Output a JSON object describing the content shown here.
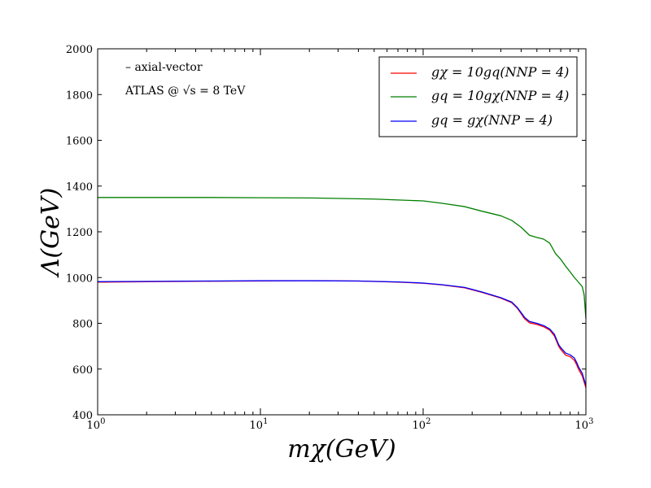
{
  "chart_data": {
    "type": "line",
    "title": "",
    "xscale": "log",
    "xlim": [
      1,
      1000
    ],
    "ylim": [
      400,
      2000
    ],
    "xlabel": "mχ(GeV)",
    "ylabel": "Λ(GeV)",
    "x_ticks": [
      1,
      10,
      100,
      1000
    ],
    "x_tick_labels": [
      {
        "base": "10",
        "exp": "0"
      },
      {
        "base": "10",
        "exp": "1"
      },
      {
        "base": "10",
        "exp": "2"
      },
      {
        "base": "10",
        "exp": "3"
      }
    ],
    "y_ticks": [
      400,
      600,
      800,
      1000,
      1200,
      1400,
      1600,
      1800,
      2000
    ],
    "y_tick_labels": [
      "400",
      "600",
      "800",
      "1000",
      "1200",
      "1400",
      "1600",
      "1800",
      "2000"
    ],
    "annotations": [
      "– axial-vector",
      "ATLAS @ √s = 8 TeV"
    ],
    "legend_position": "top-right",
    "series": [
      {
        "name": "gχ = 10gq(NNP = 4)",
        "color": "#ff0000",
        "points": [
          [
            1,
            980
          ],
          [
            2,
            982
          ],
          [
            5,
            984
          ],
          [
            10,
            985
          ],
          [
            20,
            986
          ],
          [
            40,
            985
          ],
          [
            70,
            980
          ],
          [
            100,
            975
          ],
          [
            130,
            968
          ],
          [
            180,
            955
          ],
          [
            230,
            935
          ],
          [
            300,
            910
          ],
          [
            350,
            890
          ],
          [
            380,
            865
          ],
          [
            420,
            820
          ],
          [
            450,
            802
          ],
          [
            500,
            795
          ],
          [
            550,
            785
          ],
          [
            600,
            770
          ],
          [
            640,
            745
          ],
          [
            680,
            700
          ],
          [
            700,
            686
          ],
          [
            750,
            661
          ],
          [
            800,
            654
          ],
          [
            850,
            638
          ],
          [
            880,
            617
          ],
          [
            900,
            600
          ],
          [
            950,
            570
          ],
          [
            1000,
            518
          ]
        ]
      },
      {
        "name": "gq = 10gχ(NNP = 4)",
        "color": "#008000",
        "points": [
          [
            1,
            1350
          ],
          [
            5,
            1350
          ],
          [
            10,
            1349
          ],
          [
            20,
            1348
          ],
          [
            50,
            1343
          ],
          [
            100,
            1335
          ],
          [
            130,
            1325
          ],
          [
            180,
            1310
          ],
          [
            230,
            1290
          ],
          [
            300,
            1270
          ],
          [
            350,
            1250
          ],
          [
            400,
            1220
          ],
          [
            450,
            1185
          ],
          [
            500,
            1175
          ],
          [
            550,
            1168
          ],
          [
            600,
            1150
          ],
          [
            650,
            1105
          ],
          [
            700,
            1080
          ],
          [
            750,
            1050
          ],
          [
            800,
            1025
          ],
          [
            850,
            1000
          ],
          [
            900,
            980
          ],
          [
            950,
            960
          ],
          [
            975,
            925
          ],
          [
            1000,
            820
          ]
        ]
      },
      {
        "name": "gq = gχ(NNP = 4)",
        "color": "#0000ff",
        "points": [
          [
            1,
            982
          ],
          [
            2,
            983
          ],
          [
            5,
            985
          ],
          [
            10,
            986
          ],
          [
            20,
            986
          ],
          [
            40,
            985
          ],
          [
            70,
            981
          ],
          [
            100,
            976
          ],
          [
            130,
            969
          ],
          [
            180,
            957
          ],
          [
            230,
            937
          ],
          [
            300,
            912
          ],
          [
            350,
            893
          ],
          [
            380,
            868
          ],
          [
            420,
            826
          ],
          [
            450,
            808
          ],
          [
            500,
            800
          ],
          [
            550,
            790
          ],
          [
            600,
            775
          ],
          [
            640,
            752
          ],
          [
            680,
            707
          ],
          [
            700,
            694
          ],
          [
            750,
            670
          ],
          [
            800,
            662
          ],
          [
            850,
            648
          ],
          [
            880,
            627
          ],
          [
            900,
            610
          ],
          [
            950,
            581
          ],
          [
            1000,
            528
          ]
        ]
      }
    ]
  }
}
